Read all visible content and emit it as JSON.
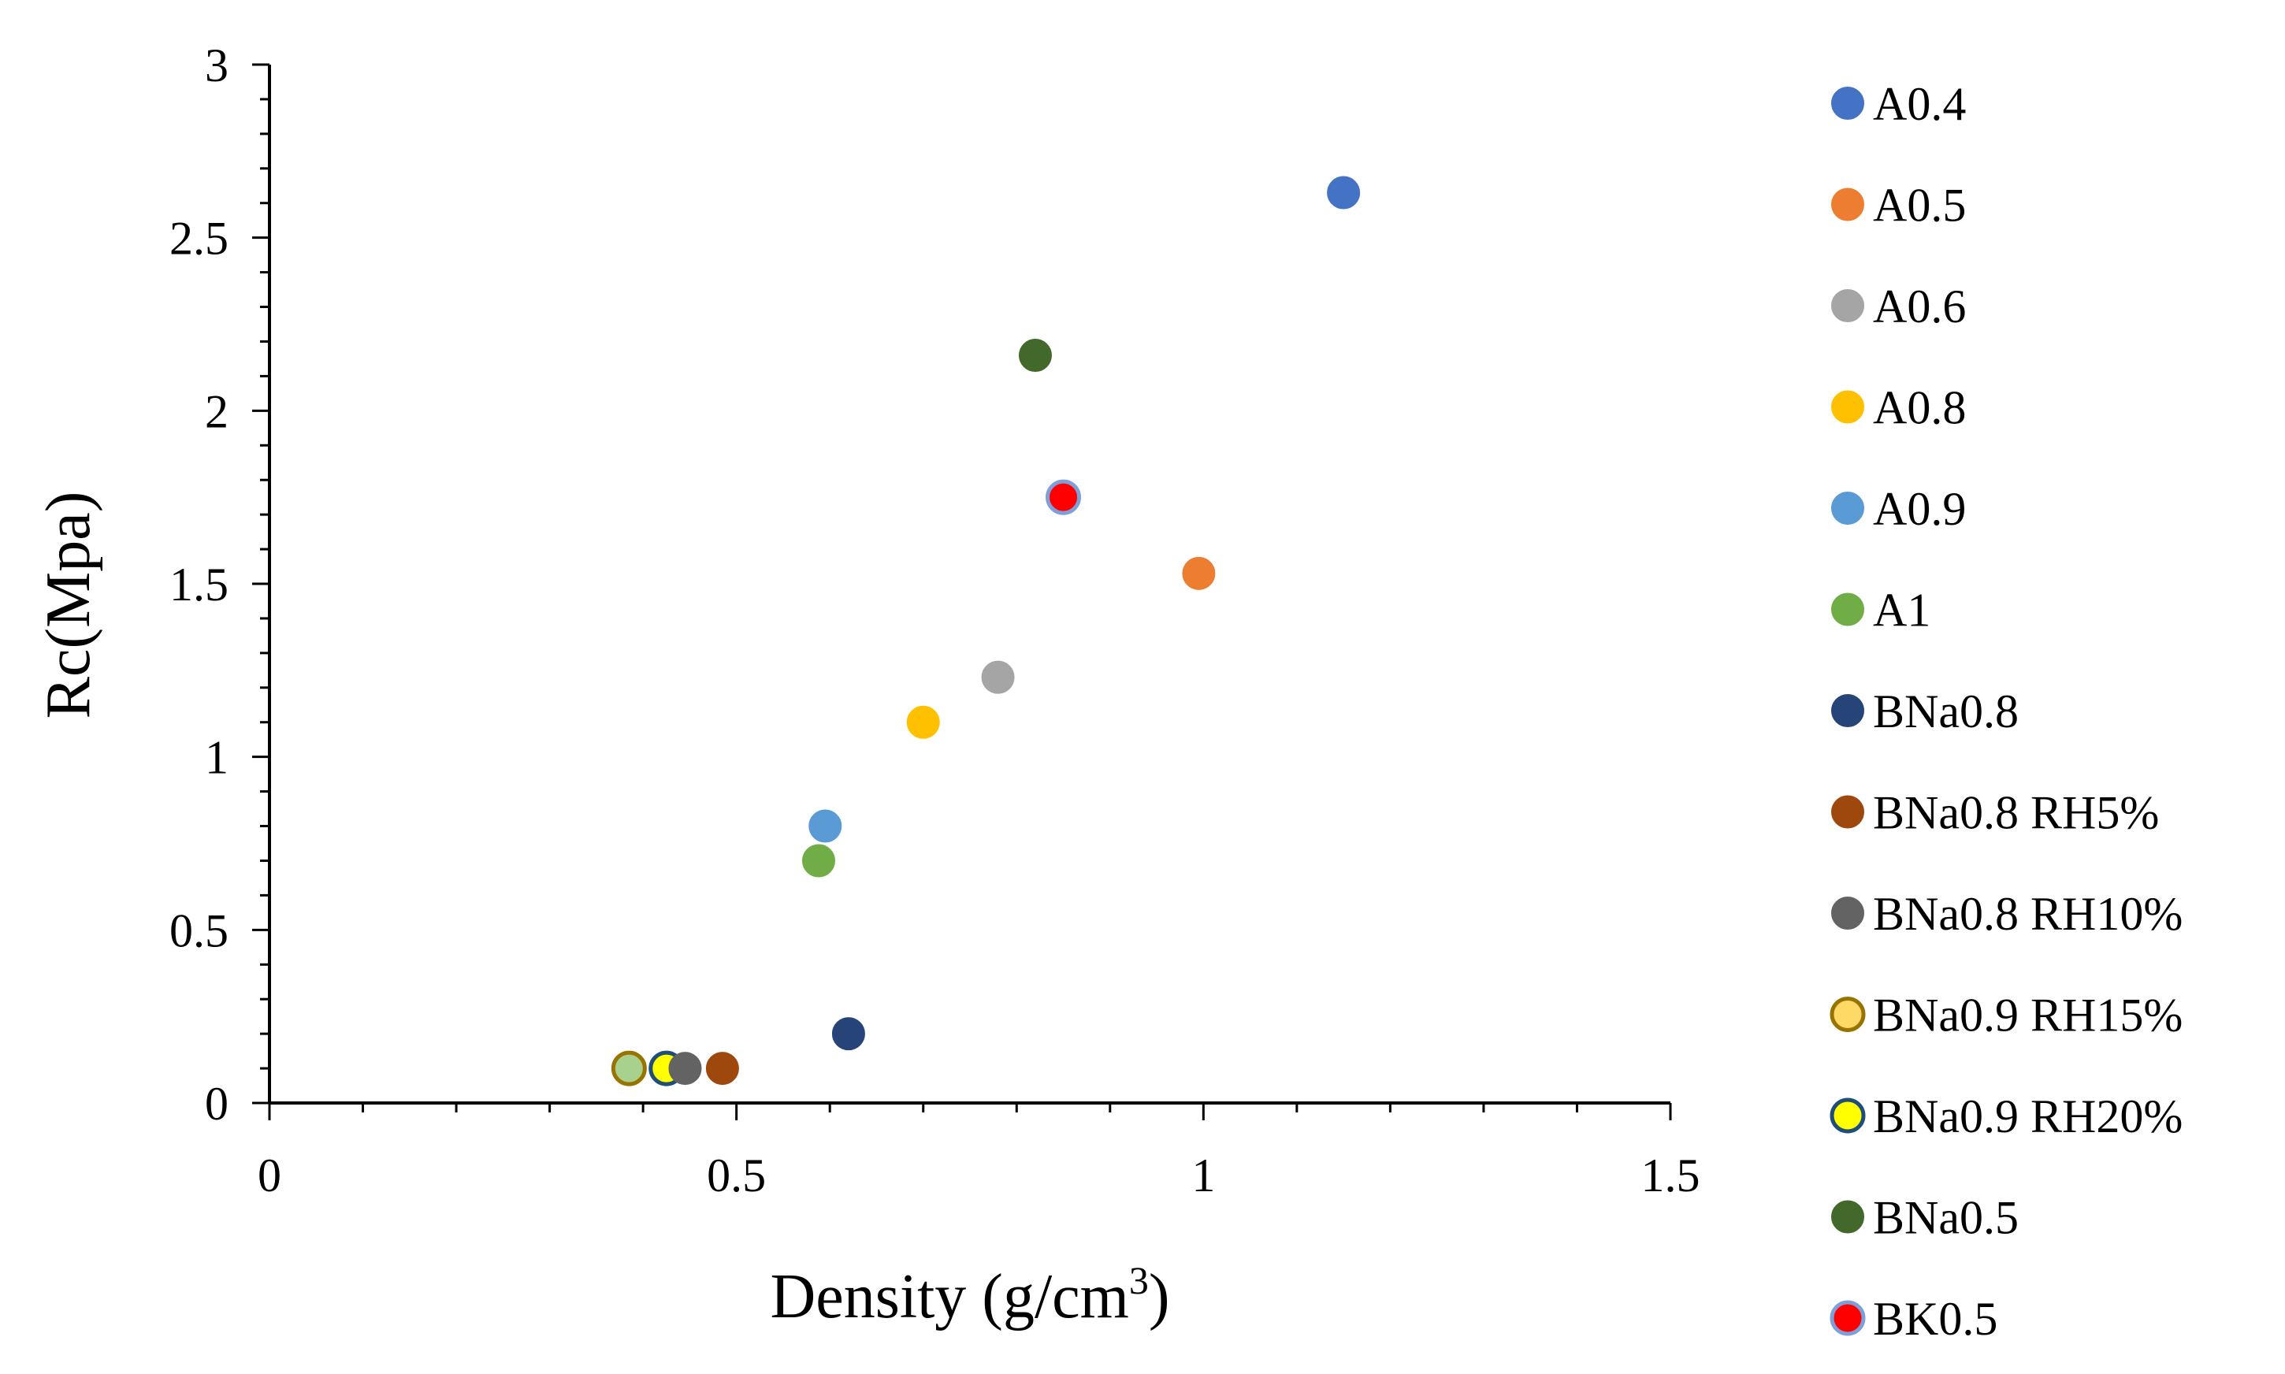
{
  "chart_data": {
    "type": "scatter",
    "title": "",
    "xlabel": "Density (g/cm",
    "xlabel_sup": "3",
    "xlabel_close": ")",
    "ylabel": "Rc(Mpa)",
    "xlim": [
      0,
      1.5
    ],
    "ylim": [
      0,
      3
    ],
    "x_ticks": [
      0,
      0.5,
      1,
      1.5
    ],
    "x_tick_labels": [
      "0",
      "0.5",
      "1",
      "1.5"
    ],
    "y_ticks": [
      0,
      0.5,
      1,
      1.5,
      2,
      2.5,
      3
    ],
    "y_tick_labels": [
      "0",
      "0.5",
      "1",
      "1.5",
      "2",
      "2.5",
      "3"
    ],
    "grid": false,
    "legend_position": "right",
    "series": [
      {
        "name": "A0.4",
        "x": 1.15,
        "y": 2.63,
        "fill": "#4472C4",
        "stroke": "#4472C4"
      },
      {
        "name": "A0.5",
        "x": 0.995,
        "y": 1.53,
        "fill": "#ED7D31",
        "stroke": "#ED7D31"
      },
      {
        "name": "A0.6",
        "x": 0.78,
        "y": 1.23,
        "fill": "#A5A5A5",
        "stroke": "#A5A5A5"
      },
      {
        "name": "A0.8",
        "x": 0.7,
        "y": 1.1,
        "fill": "#FFC000",
        "stroke": "#FFC000"
      },
      {
        "name": "A0.9",
        "x": 0.595,
        "y": 0.8,
        "fill": "#5B9BD5",
        "stroke": "#5B9BD5"
      },
      {
        "name": "A1",
        "x": 0.588,
        "y": 0.7,
        "fill": "#70AD47",
        "stroke": "#70AD47"
      },
      {
        "name": "BNa0.8",
        "x": 0.62,
        "y": 0.2,
        "fill": "#264478",
        "stroke": "#264478"
      },
      {
        "name": "BNa0.8 RH5%",
        "x": 0.485,
        "y": 0.1,
        "fill": "#9E480E",
        "stroke": "#9E480E"
      },
      {
        "name": "BNa0.8 RH10%",
        "x": 0.445,
        "y": 0.1,
        "fill": "#636363",
        "stroke": "#636363"
      },
      {
        "name": "BNa0.9 RH15%",
        "x": 0.385,
        "y": 0.1,
        "fill": "#FFD966",
        "stroke": "#997300",
        "plot_fill": "#A9D18E"
      },
      {
        "name": "BNa0.9 RH20%",
        "x": 0.425,
        "y": 0.1,
        "fill": "#FFFF00",
        "stroke": "#1F4E79"
      },
      {
        "name": "BNa0.5",
        "x": 0.82,
        "y": 2.16,
        "fill": "#43682B",
        "stroke": "#43682B"
      },
      {
        "name": "BK0.5",
        "x": 0.85,
        "y": 1.75,
        "fill": "#FF0000",
        "stroke": "#7F9FD9"
      }
    ]
  }
}
